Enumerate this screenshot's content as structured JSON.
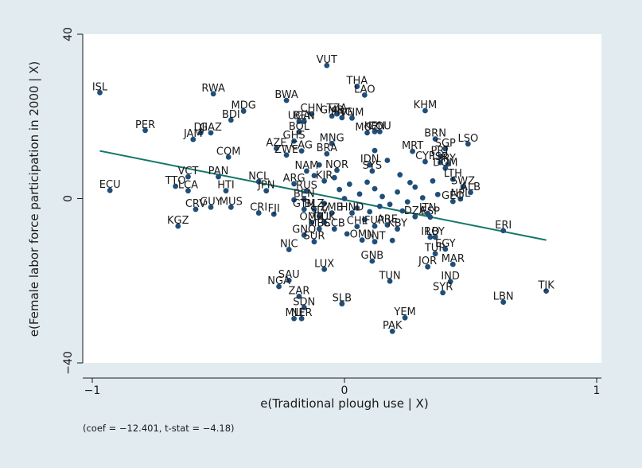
{
  "chart_data": {
    "type": "scatter",
    "xlabel": "e(Traditional plough use | X)",
    "ylabel": "e(Female labor force participation in 2000 | X)",
    "note": "(coef = −12.401, t-stat = −4.18)",
    "xlim": [
      -1.05,
      1.05
    ],
    "ylim": [
      -41,
      41
    ],
    "x_ticks": [
      -1,
      0,
      1
    ],
    "x_tick_labels": [
      "−1",
      "0",
      "1"
    ],
    "y_ticks": [
      -40,
      0,
      40
    ],
    "y_tick_labels": [
      "−40",
      "0",
      "40"
    ],
    "grid": false,
    "legend": "none",
    "colors": {
      "points": "#1f4e79",
      "fit_line": "#15766b",
      "background": "#e2ecf0",
      "plot_bg": "#ffffff",
      "text": "#1a1a1a"
    },
    "fit_line": {
      "x": [
        -0.97,
        0.8
      ],
      "y": [
        11.6,
        -10.1
      ]
    },
    "points": [
      {
        "label": "ISL",
        "x": -0.97,
        "y": 25.8
      },
      {
        "label": "RWA",
        "x": -0.52,
        "y": 25.5
      },
      {
        "label": "BWA",
        "x": -0.23,
        "y": 23.9
      },
      {
        "label": "VUT",
        "x": -0.07,
        "y": 32.4
      },
      {
        "label": "THA",
        "x": 0.05,
        "y": 27.3
      },
      {
        "label": "LAO",
        "x": 0.08,
        "y": 25.2
      },
      {
        "label": "KHM",
        "x": 0.32,
        "y": 21.4
      },
      {
        "label": "MDG",
        "x": -0.4,
        "y": 21.3
      },
      {
        "label": "BDI",
        "x": -0.45,
        "y": 19.1
      },
      {
        "label": "PER",
        "x": -0.79,
        "y": 16.6
      },
      {
        "label": "CHN",
        "x": -0.13,
        "y": 20.6
      },
      {
        "label": "TZA",
        "x": -0.03,
        "y": 20.6
      },
      {
        "label": "VNM",
        "x": 0.03,
        "y": 19.6
      },
      {
        "label": "GMB",
        "x": -0.05,
        "y": 20.1
      },
      {
        "label": "PNG",
        "x": -0.01,
        "y": 19.7
      },
      {
        "label": "UGA",
        "x": -0.18,
        "y": 18.8
      },
      {
        "label": "BEN",
        "x": -0.16,
        "y": 18.8
      },
      {
        "label": "MOZ",
        "x": 0.09,
        "y": 16.0
      },
      {
        "label": "KEN",
        "x": 0.12,
        "y": 16.3
      },
      {
        "label": "COU",
        "x": 0.14,
        "y": 16.3
      },
      {
        "label": "BRN",
        "x": 0.36,
        "y": 14.5
      },
      {
        "label": "LSO",
        "x": 0.49,
        "y": 13.3
      },
      {
        "label": "BOL",
        "x": -0.18,
        "y": 16.2
      },
      {
        "label": "DJI",
        "x": -0.57,
        "y": 16.0
      },
      {
        "label": "GAZ",
        "x": -0.53,
        "y": 16.0
      },
      {
        "label": "JAM",
        "x": -0.6,
        "y": 14.4
      },
      {
        "label": "AZE",
        "x": -0.27,
        "y": 12.2
      },
      {
        "label": "GHS",
        "x": -0.2,
        "y": 14.0
      },
      {
        "label": "MNG",
        "x": -0.05,
        "y": 13.4
      },
      {
        "label": "BRA",
        "x": -0.07,
        "y": 10.9
      },
      {
        "label": "CAG",
        "x": -0.17,
        "y": 11.6
      },
      {
        "label": "ZWE",
        "x": -0.23,
        "y": 10.6
      },
      {
        "label": "COM",
        "x": -0.46,
        "y": 10.1
      },
      {
        "label": "MRT",
        "x": 0.27,
        "y": 11.5
      },
      {
        "label": "SGP",
        "x": 0.4,
        "y": 12.1
      },
      {
        "label": "PRT",
        "x": 0.38,
        "y": 10.3
      },
      {
        "label": "CYP",
        "x": 0.32,
        "y": 9.0
      },
      {
        "label": "IRY",
        "x": 0.41,
        "y": 8.4
      },
      {
        "label": "ISR",
        "x": 0.38,
        "y": 8.8
      },
      {
        "label": "DOM",
        "x": 0.4,
        "y": 7.4
      },
      {
        "label": "IDN",
        "x": 0.1,
        "y": 8.2
      },
      {
        "label": "LTH",
        "x": 0.43,
        "y": 4.7
      },
      {
        "label": "SWZ",
        "x": 0.47,
        "y": 2.9
      },
      {
        "label": "ALB",
        "x": 0.5,
        "y": 1.5
      },
      {
        "label": "NPL",
        "x": 0.46,
        "y": -0.1
      },
      {
        "label": "GEO",
        "x": 0.43,
        "y": -0.7
      },
      {
        "label": "NOR",
        "x": -0.03,
        "y": 6.9
      },
      {
        "label": "SYS",
        "x": 0.11,
        "y": 6.7
      },
      {
        "label": "NAM",
        "x": -0.15,
        "y": 6.7
      },
      {
        "label": "KIR",
        "x": -0.08,
        "y": 4.3
      },
      {
        "label": "ARG",
        "x": -0.2,
        "y": 3.6
      },
      {
        "label": "RUS",
        "x": -0.15,
        "y": 1.8
      },
      {
        "label": "NCL",
        "x": -0.34,
        "y": 4.1
      },
      {
        "label": "JPN",
        "x": -0.31,
        "y": 1.9
      },
      {
        "label": "VCT",
        "x": -0.62,
        "y": 5.3
      },
      {
        "label": "PAN",
        "x": -0.5,
        "y": 5.3
      },
      {
        "label": "TTO",
        "x": -0.67,
        "y": 3.0
      },
      {
        "label": "ECU",
        "x": -0.93,
        "y": 2.0
      },
      {
        "label": "LCA",
        "x": -0.62,
        "y": 1.9
      },
      {
        "label": "HTI",
        "x": -0.47,
        "y": 1.9
      },
      {
        "label": "KGZ",
        "x": -0.66,
        "y": -6.7
      },
      {
        "label": "CRV",
        "x": -0.59,
        "y": -2.6
      },
      {
        "label": "GUY",
        "x": -0.53,
        "y": -2.1
      },
      {
        "label": "MUS",
        "x": -0.45,
        "y": -2.1
      },
      {
        "label": "CRI",
        "x": -0.34,
        "y": -3.5
      },
      {
        "label": "FJI",
        "x": -0.28,
        "y": -3.8
      },
      {
        "label": "BEN",
        "x": -0.16,
        "y": -0.2
      },
      {
        "label": "GTM",
        "x": -0.16,
        "y": -2.6
      },
      {
        "label": "BLZ",
        "x": -0.12,
        "y": -2.6
      },
      {
        "label": "ZMB",
        "x": -0.05,
        "y": -3.5
      },
      {
        "label": "SLV",
        "x": -0.1,
        "y": -4.3
      },
      {
        "label": "OMR",
        "x": -0.13,
        "y": -5.8
      },
      {
        "label": "GUK",
        "x": -0.08,
        "y": -5.8
      },
      {
        "label": "MBS",
        "x": -0.1,
        "y": -7.4
      },
      {
        "label": "CCB",
        "x": -0.04,
        "y": -7.4
      },
      {
        "label": "GNQ",
        "x": -0.16,
        "y": -8.9
      },
      {
        "label": "SUR",
        "x": -0.12,
        "y": -10.5
      },
      {
        "label": "GNB",
        "x": 0.11,
        "y": -15.2
      },
      {
        "label": "UNT",
        "x": 0.12,
        "y": -10.5
      },
      {
        "label": "OMN",
        "x": 0.07,
        "y": -10.1
      },
      {
        "label": "CHL",
        "x": 0.05,
        "y": -6.8
      },
      {
        "label": "HND",
        "x": 0.03,
        "y": -3.5
      },
      {
        "label": "FUR",
        "x": 0.12,
        "y": -6.7
      },
      {
        "label": "ARE",
        "x": 0.17,
        "y": -6.4
      },
      {
        "label": "KBY",
        "x": 0.21,
        "y": -7.4
      },
      {
        "label": "DZA",
        "x": 0.28,
        "y": -4.4
      },
      {
        "label": "ESP",
        "x": 0.34,
        "y": -4.5
      },
      {
        "label": "ITN",
        "x": 0.33,
        "y": -3.6
      },
      {
        "label": "IRQ",
        "x": 0.34,
        "y": -9.4
      },
      {
        "label": "LBY",
        "x": 0.36,
        "y": -9.4
      },
      {
        "label": "TUR",
        "x": 0.36,
        "y": -13.4
      },
      {
        "label": "EGY",
        "x": 0.4,
        "y": -12.3
      },
      {
        "label": "JOR",
        "x": 0.33,
        "y": -16.6
      },
      {
        "label": "MAR",
        "x": 0.43,
        "y": -16.0
      },
      {
        "label": "IND",
        "x": 0.42,
        "y": -20.2
      },
      {
        "label": "SYR",
        "x": 0.39,
        "y": -22.9
      },
      {
        "label": "ERI",
        "x": 0.63,
        "y": -7.8
      },
      {
        "label": "TUN",
        "x": 0.18,
        "y": -20.1
      },
      {
        "label": "NIC",
        "x": -0.22,
        "y": -12.4
      },
      {
        "label": "LUX",
        "x": -0.08,
        "y": -17.2
      },
      {
        "label": "SAU",
        "x": -0.22,
        "y": -19.9
      },
      {
        "label": "NGA",
        "x": -0.26,
        "y": -21.4
      },
      {
        "label": "ZAR",
        "x": -0.18,
        "y": -23.8
      },
      {
        "label": "SLB",
        "x": -0.01,
        "y": -25.6
      },
      {
        "label": "SDN",
        "x": -0.16,
        "y": -26.5
      },
      {
        "label": "MLI",
        "x": -0.2,
        "y": -29.2
      },
      {
        "label": "NER",
        "x": -0.17,
        "y": -29.2
      },
      {
        "label": "YEM",
        "x": 0.24,
        "y": -29.0
      },
      {
        "label": "PAK",
        "x": 0.19,
        "y": -32.3
      },
      {
        "label": "LBN",
        "x": 0.63,
        "y": -25.2
      },
      {
        "label": "TJK",
        "x": 0.8,
        "y": -22.5
      }
    ],
    "unlabeled_points": [
      {
        "x": -0.2,
        "y": -0.3
      },
      {
        "x": -0.08,
        "y": -1.2
      },
      {
        "x": -0.02,
        "y": 2.2
      },
      {
        "x": 0.02,
        "y": 3.5
      },
      {
        "x": 0.06,
        "y": 1.1
      },
      {
        "x": 0.09,
        "y": 4.0
      },
      {
        "x": 0.12,
        "y": 2.4
      },
      {
        "x": 0.15,
        "y": 0.5
      },
      {
        "x": 0.18,
        "y": -1.4
      },
      {
        "x": 0.21,
        "y": 1.6
      },
      {
        "x": 0.25,
        "y": -0.8
      },
      {
        "x": 0.28,
        "y": 2.8
      },
      {
        "x": 0.31,
        "y": 0.2
      },
      {
        "x": 0.05,
        "y": -2.3
      },
      {
        "x": 0.1,
        "y": -3.2
      },
      {
        "x": 0.14,
        "y": -1.9
      },
      {
        "x": -0.04,
        "y": 5.1
      },
      {
        "x": 0.0,
        "y": 0.0
      },
      {
        "x": 0.22,
        "y": 5.8
      },
      {
        "x": 0.26,
        "y": 3.9
      },
      {
        "x": 0.35,
        "y": 4.3
      },
      {
        "x": 0.37,
        "y": 1.0
      },
      {
        "x": -0.1,
        "y": 8.2
      },
      {
        "x": 0.17,
        "y": 9.3
      },
      {
        "x": 0.08,
        "y": -5.1
      },
      {
        "x": 0.01,
        "y": -8.6
      },
      {
        "x": 0.19,
        "y": -10.2
      },
      {
        "x": 0.12,
        "y": 11.7
      },
      {
        "x": -0.12,
        "y": 5.6
      },
      {
        "x": 0.23,
        "y": -3.0
      }
    ]
  }
}
